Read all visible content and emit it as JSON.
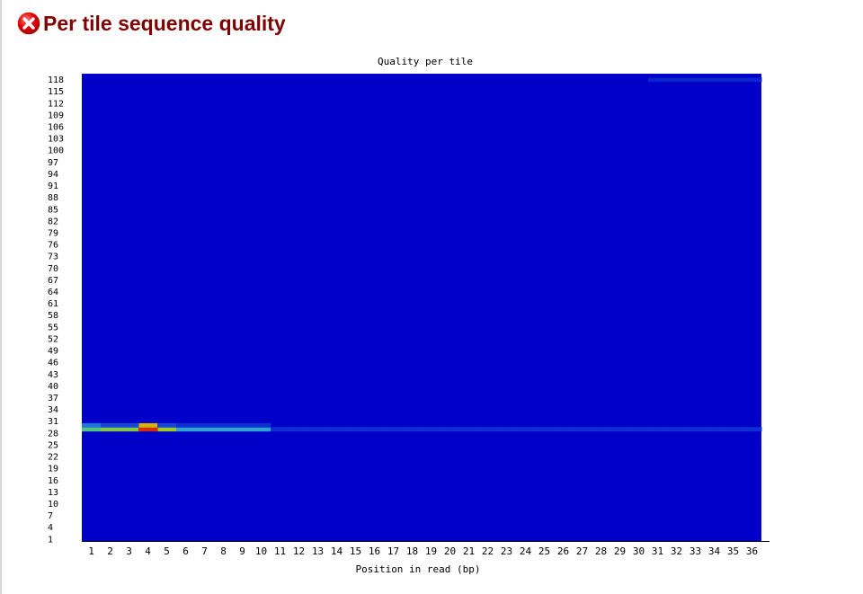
{
  "header": {
    "title": "Per tile sequence quality",
    "icon": "error-icon",
    "title_color": "#800000"
  },
  "chart_data": {
    "type": "heatmap",
    "title": "Quality per tile",
    "xlabel": "Position in read (bp)",
    "ylabel": "",
    "x_categories": [
      "1",
      "2",
      "3",
      "4",
      "5",
      "6",
      "7",
      "8",
      "9",
      "10",
      "11",
      "12",
      "13",
      "14",
      "15",
      "16",
      "17",
      "18",
      "19",
      "20",
      "21",
      "22",
      "23",
      "24",
      "25",
      "26",
      "27",
      "28",
      "29",
      "30",
      "31",
      "32",
      "33",
      "34",
      "35",
      "36"
    ],
    "y_ticks": [
      "1",
      "4",
      "7",
      "10",
      "13",
      "16",
      "19",
      "22",
      "25",
      "28",
      "31",
      "34",
      "37",
      "40",
      "43",
      "46",
      "49",
      "52",
      "55",
      "58",
      "61",
      "64",
      "67",
      "70",
      "73",
      "76",
      "79",
      "82",
      "85",
      "88",
      "91",
      "94",
      "97",
      "100",
      "103",
      "106",
      "109",
      "112",
      "115",
      "118"
    ],
    "ylim": [
      1,
      119
    ],
    "background_value": 0,
    "hotspots": [
      {
        "tile": 29,
        "positions": [
          1,
          2,
          3,
          5,
          6,
          7,
          8,
          9,
          10
        ],
        "values": [
          0.45,
          0.55,
          0.55,
          0.6,
          0.3,
          0.3,
          0.3,
          0.3,
          0.3
        ]
      },
      {
        "tile": 29,
        "positions": [
          4
        ],
        "values": [
          0.95
        ]
      },
      {
        "tile": 30,
        "positions": [
          4
        ],
        "values": [
          0.75
        ]
      },
      {
        "tile": 30,
        "positions": [
          1,
          2,
          3,
          5,
          6,
          7,
          8,
          9,
          10
        ],
        "values": [
          0.2,
          0.12,
          0.12,
          0.12,
          0.08,
          0.08,
          0.08,
          0.08,
          0.08
        ]
      },
      {
        "tile": 29,
        "positions": [
          11,
          12,
          13,
          14,
          15,
          16,
          17,
          18,
          19,
          20,
          21,
          22,
          23,
          24,
          25,
          26,
          27,
          28,
          29,
          30,
          31,
          32,
          33,
          34,
          35,
          36
        ],
        "values": [
          0.08,
          0.08,
          0.08,
          0.08,
          0.08,
          0.08,
          0.08,
          0.08,
          0.08,
          0.08,
          0.08,
          0.08,
          0.08,
          0.08,
          0.08,
          0.08,
          0.08,
          0.08,
          0.08,
          0.08,
          0.08,
          0.08,
          0.08,
          0.08,
          0.08,
          0.08
        ]
      },
      {
        "tile": 118,
        "positions": [
          31,
          32,
          33,
          34,
          35,
          36
        ],
        "values": [
          0.06,
          0.06,
          0.06,
          0.06,
          0.06,
          0.06
        ]
      }
    ],
    "colors": {
      "background": "#0000c8",
      "scale": [
        "#0000c8",
        "#1e64dc",
        "#32b4c8",
        "#64c864",
        "#c8c800",
        "#e8a000",
        "#c80000"
      ]
    },
    "grid": false,
    "legend": "none"
  }
}
